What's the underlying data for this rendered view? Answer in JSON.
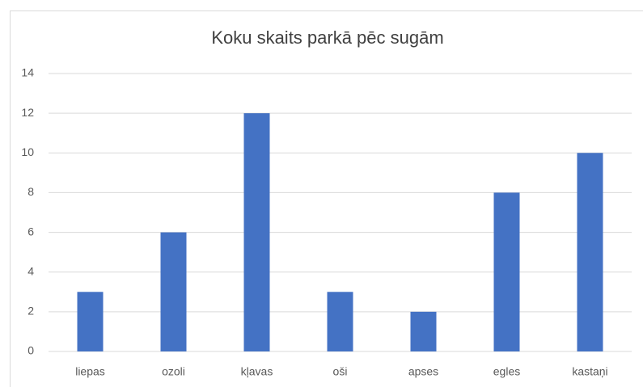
{
  "chart_data": {
    "type": "bar",
    "title": "Koku skaits parkā pēc sugām",
    "categories": [
      "liepas",
      "ozoli",
      "kļavas",
      "oši",
      "apses",
      "egles",
      "kastaņi"
    ],
    "values": [
      3,
      6,
      12,
      3,
      2,
      8,
      10
    ],
    "color": "#4472c4",
    "ylim": [
      0,
      14
    ],
    "yticks": [
      0,
      2,
      4,
      6,
      8,
      10,
      12,
      14
    ],
    "grid": true
  }
}
